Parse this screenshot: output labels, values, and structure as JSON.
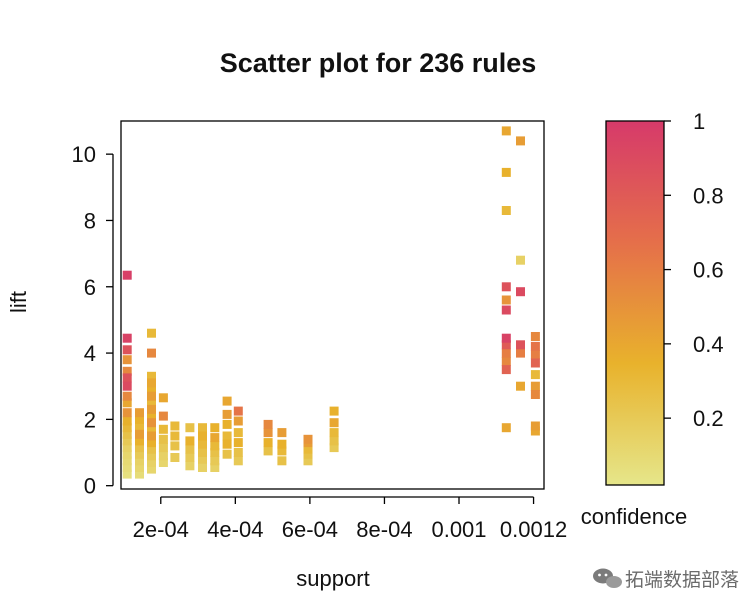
{
  "chart_data": {
    "type": "scatter",
    "title": "Scatter plot for 236 rules",
    "xlabel": "support",
    "ylabel": "lift",
    "xlim": [
      9.33e-05,
      0.001228
    ],
    "ylim": [
      -0.1,
      11
    ],
    "x_ticks": [
      {
        "value": 0.0002,
        "label": "2e-04"
      },
      {
        "value": 0.0004,
        "label": "4e-04"
      },
      {
        "value": 0.0006,
        "label": "6e-04"
      },
      {
        "value": 0.0008,
        "label": "8e-04"
      },
      {
        "value": 0.001,
        "label": "0.001"
      },
      {
        "value": 0.0012,
        "label": "0.0012"
      }
    ],
    "y_ticks": [
      {
        "value": 0,
        "label": "0"
      },
      {
        "value": 2,
        "label": "2"
      },
      {
        "value": 4,
        "label": "4"
      },
      {
        "value": 6,
        "label": "6"
      },
      {
        "value": 8,
        "label": "8"
      },
      {
        "value": 10,
        "label": "10"
      }
    ],
    "color_scale": {
      "label": "confidence",
      "range": [
        0.02,
        1.0
      ],
      "colors": [
        "#e6e68a",
        "#e8b22c",
        "#e56f4a",
        "#d63a6a"
      ],
      "ticks": [
        {
          "value": 1,
          "label": "1"
        },
        {
          "value": 0.8,
          "label": "0.8"
        },
        {
          "value": 0.6,
          "label": "0.6"
        },
        {
          "value": 0.4,
          "label": "0.4"
        },
        {
          "value": 0.2,
          "label": "0.2"
        }
      ]
    },
    "points": [
      [
        0.00011,
        6.35,
        0.97
      ],
      [
        0.00011,
        4.45,
        0.95
      ],
      [
        0.00011,
        4.1,
        0.85
      ],
      [
        0.00011,
        3.8,
        0.5
      ],
      [
        0.00011,
        3.45,
        0.55
      ],
      [
        0.00011,
        3.25,
        0.85
      ],
      [
        0.00011,
        3.0,
        0.9
      ],
      [
        0.00011,
        2.7,
        0.55
      ],
      [
        0.00011,
        2.5,
        0.4
      ],
      [
        0.00011,
        2.2,
        0.5
      ],
      [
        0.00011,
        1.95,
        0.35
      ],
      [
        0.00011,
        1.75,
        0.3
      ],
      [
        0.00011,
        1.55,
        0.25
      ],
      [
        0.00011,
        1.35,
        0.2
      ],
      [
        0.00011,
        1.15,
        0.15
      ],
      [
        0.00011,
        0.95,
        0.12
      ],
      [
        0.00011,
        0.75,
        0.1
      ],
      [
        0.00011,
        0.55,
        0.08
      ],
      [
        0.00011,
        0.35,
        0.06
      ],
      [
        0.000143,
        2.2,
        0.45
      ],
      [
        0.000143,
        2.0,
        0.35
      ],
      [
        0.000143,
        1.75,
        0.3
      ],
      [
        0.000143,
        1.55,
        0.45
      ],
      [
        0.000143,
        1.35,
        0.35
      ],
      [
        0.000143,
        1.15,
        0.25
      ],
      [
        0.000143,
        0.95,
        0.2
      ],
      [
        0.000143,
        0.75,
        0.15
      ],
      [
        0.000143,
        0.55,
        0.12
      ],
      [
        0.000143,
        0.35,
        0.08
      ],
      [
        0.000175,
        4.6,
        0.3
      ],
      [
        0.000175,
        4.0,
        0.55
      ],
      [
        0.000175,
        3.3,
        0.3
      ],
      [
        0.000175,
        3.1,
        0.4
      ],
      [
        0.000175,
        2.9,
        0.35
      ],
      [
        0.000175,
        2.7,
        0.45
      ],
      [
        0.000175,
        2.5,
        0.3
      ],
      [
        0.000175,
        2.3,
        0.45
      ],
      [
        0.000175,
        2.1,
        0.35
      ],
      [
        0.000175,
        1.9,
        0.5
      ],
      [
        0.000175,
        1.7,
        0.3
      ],
      [
        0.000175,
        1.5,
        0.45
      ],
      [
        0.000175,
        1.3,
        0.35
      ],
      [
        0.000175,
        1.1,
        0.25
      ],
      [
        0.000175,
        0.9,
        0.2
      ],
      [
        0.000175,
        0.7,
        0.15
      ],
      [
        0.000175,
        0.5,
        0.12
      ],
      [
        0.000207,
        2.65,
        0.4
      ],
      [
        0.000207,
        2.1,
        0.55
      ],
      [
        0.000207,
        1.7,
        0.3
      ],
      [
        0.000207,
        1.4,
        0.25
      ],
      [
        0.000207,
        1.15,
        0.2
      ],
      [
        0.000207,
        0.9,
        0.15
      ],
      [
        0.000207,
        0.7,
        0.12
      ],
      [
        0.000238,
        1.8,
        0.3
      ],
      [
        0.000238,
        1.5,
        0.3
      ],
      [
        0.000238,
        1.2,
        0.25
      ],
      [
        0.000238,
        0.85,
        0.2
      ],
      [
        0.000278,
        1.75,
        0.25
      ],
      [
        0.000278,
        1.35,
        0.35
      ],
      [
        0.000278,
        1.1,
        0.25
      ],
      [
        0.000278,
        0.85,
        0.2
      ],
      [
        0.000278,
        0.6,
        0.15
      ],
      [
        0.000312,
        1.75,
        0.3
      ],
      [
        0.000312,
        1.5,
        0.35
      ],
      [
        0.000312,
        1.25,
        0.3
      ],
      [
        0.000312,
        1.0,
        0.25
      ],
      [
        0.000312,
        0.8,
        0.2
      ],
      [
        0.000312,
        0.55,
        0.15
      ],
      [
        0.000345,
        1.75,
        0.35
      ],
      [
        0.000345,
        1.45,
        0.4
      ],
      [
        0.000345,
        1.2,
        0.3
      ],
      [
        0.000345,
        1.0,
        0.25
      ],
      [
        0.000345,
        0.75,
        0.2
      ],
      [
        0.000345,
        0.55,
        0.15
      ],
      [
        0.000378,
        2.55,
        0.4
      ],
      [
        0.000378,
        2.15,
        0.45
      ],
      [
        0.000378,
        1.85,
        0.35
      ],
      [
        0.000378,
        1.5,
        0.3
      ],
      [
        0.000378,
        1.25,
        0.35
      ],
      [
        0.000378,
        0.95,
        0.25
      ],
      [
        0.000408,
        2.25,
        0.65
      ],
      [
        0.000408,
        1.95,
        0.45
      ],
      [
        0.000408,
        1.6,
        0.3
      ],
      [
        0.000408,
        1.3,
        0.35
      ],
      [
        0.000408,
        1.0,
        0.25
      ],
      [
        0.000408,
        0.75,
        0.2
      ],
      [
        0.000488,
        1.85,
        0.55
      ],
      [
        0.000488,
        1.6,
        0.5
      ],
      [
        0.000488,
        1.3,
        0.35
      ],
      [
        0.000488,
        1.05,
        0.25
      ],
      [
        0.000525,
        1.6,
        0.45
      ],
      [
        0.000525,
        1.25,
        0.35
      ],
      [
        0.000525,
        1.05,
        0.3
      ],
      [
        0.000525,
        0.75,
        0.25
      ],
      [
        0.000595,
        1.4,
        0.5
      ],
      [
        0.000595,
        1.3,
        0.45
      ],
      [
        0.000595,
        1.1,
        0.3
      ],
      [
        0.000595,
        0.95,
        0.25
      ],
      [
        0.000595,
        0.75,
        0.2
      ],
      [
        0.000665,
        2.25,
        0.35
      ],
      [
        0.000665,
        1.9,
        0.4
      ],
      [
        0.000665,
        1.6,
        0.3
      ],
      [
        0.000665,
        1.35,
        0.25
      ],
      [
        0.000665,
        1.15,
        0.2
      ],
      [
        0.001127,
        10.7,
        0.4
      ],
      [
        0.001127,
        9.45,
        0.35
      ],
      [
        0.001127,
        8.3,
        0.3
      ],
      [
        0.001127,
        6.0,
        0.85
      ],
      [
        0.001127,
        5.6,
        0.5
      ],
      [
        0.001127,
        5.3,
        0.9
      ],
      [
        0.001127,
        4.45,
        0.95
      ],
      [
        0.001127,
        4.25,
        0.8
      ],
      [
        0.001127,
        4.0,
        0.6
      ],
      [
        0.001127,
        3.75,
        0.55
      ],
      [
        0.001127,
        3.5,
        0.75
      ],
      [
        0.001127,
        1.75,
        0.4
      ],
      [
        0.001165,
        10.4,
        0.45
      ],
      [
        0.001165,
        6.8,
        0.15
      ],
      [
        0.001165,
        5.85,
        0.9
      ],
      [
        0.001165,
        4.25,
        0.85
      ],
      [
        0.001165,
        4.0,
        0.6
      ],
      [
        0.001165,
        3.0,
        0.4
      ],
      [
        0.001205,
        4.5,
        0.55
      ],
      [
        0.001205,
        4.2,
        0.65
      ],
      [
        0.001205,
        3.95,
        0.6
      ],
      [
        0.001205,
        3.7,
        0.75
      ],
      [
        0.001205,
        3.35,
        0.3
      ],
      [
        0.001205,
        3.0,
        0.45
      ],
      [
        0.001205,
        2.75,
        0.55
      ],
      [
        0.001205,
        1.8,
        0.45
      ],
      [
        0.001205,
        1.65,
        0.4
      ]
    ]
  },
  "watermark": {
    "text": "拓端数据部落",
    "icon": "chat-bubble-icon"
  }
}
